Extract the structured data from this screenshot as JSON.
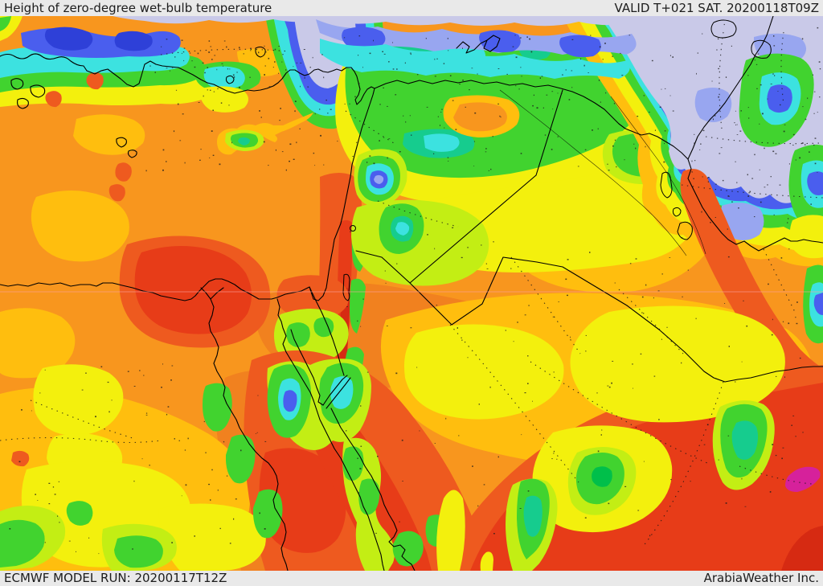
{
  "header": {
    "title": "Height of zero-degree wet-bulb temperature",
    "valid_label": "VALID T+021 SAT. 20200118T09Z"
  },
  "footer": {
    "model_run": "ECMWF MODEL RUN: 20200117T12Z",
    "credit": "ArabiaWeather Inc."
  },
  "map": {
    "kind": "filled-contour forecast map",
    "palette": {
      "lavender": "#c9c9e8",
      "periwinkle": "#98a6f0",
      "blue": "#4a5eee",
      "blue_deep": "#2e40d8",
      "cyan": "#3ce2e0",
      "teal": "#16cc8e",
      "green": "#41d32f",
      "green_deep": "#00bf4a",
      "lime": "#c3ee14",
      "yellow": "#f3f00d",
      "amber": "#ffbe0e",
      "orange": "#f8961e",
      "orange_deep": "#f1811f",
      "orange_red": "#ee5a1f",
      "red": "#e73c18",
      "red_deep": "#d62a12",
      "magenta": "#d6219b",
      "coastline": "#000000",
      "plate_bg": "#e9e9e9",
      "text": "#1c1c1c"
    }
  }
}
